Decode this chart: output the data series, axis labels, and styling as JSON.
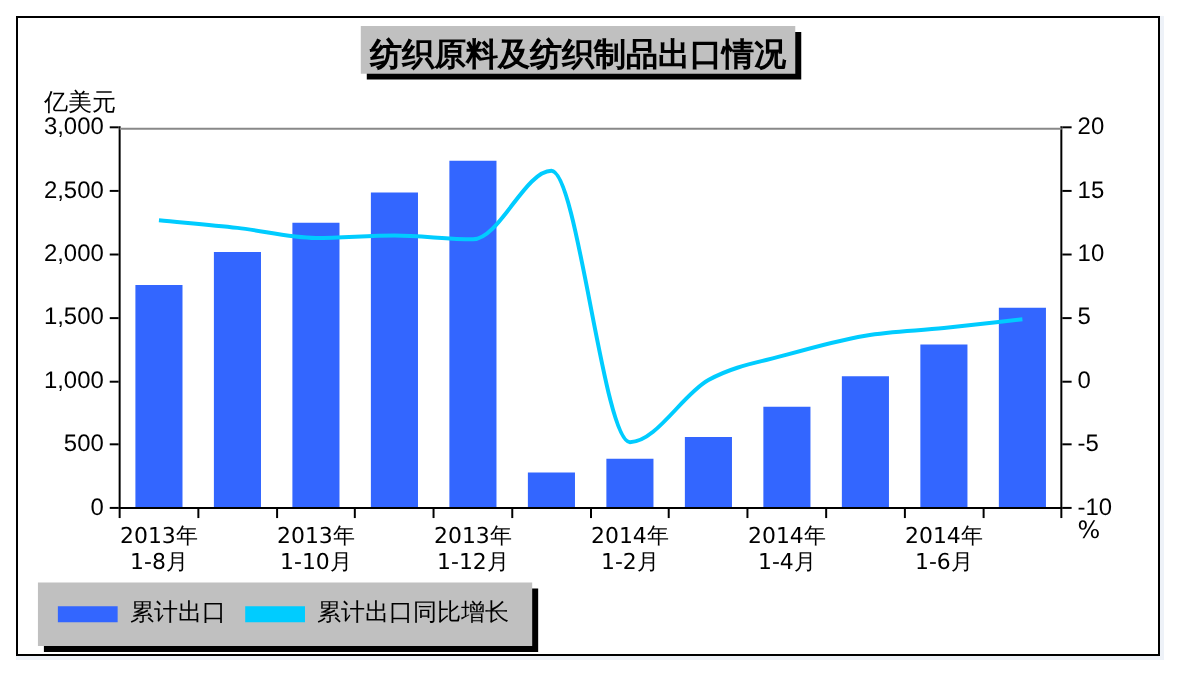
{
  "chart_data": {
    "type": "bar",
    "title": "纺织原料及纺织制品出口情况",
    "ylabel": "亿美元",
    "y2label": "%",
    "categories": [
      "2013年 1-8月",
      null,
      "2013年 1-10月",
      null,
      "2013年 1-12月",
      null,
      "2014年 1-2月",
      null,
      "2014年 1-4月",
      null,
      "2014年 1-6月",
      null
    ],
    "series": [
      {
        "name": "累计出口",
        "color": "#3366ff",
        "values": [
          1760,
          2020,
          2250,
          2490,
          2740,
          280,
          390,
          560,
          800,
          1040,
          1290,
          1580
        ]
      },
      {
        "name": "累计出口同比增长",
        "type": "line",
        "axis": "y2",
        "color": "#00ccff",
        "values": [
          12.7,
          12.1,
          11.3,
          11.5,
          11.2,
          16.6,
          -4.8,
          0.1,
          2.1,
          3.6,
          4.2,
          4.9
        ]
      }
    ],
    "ylim": [
      0,
      3000
    ],
    "yticks": [
      {
        "value": 0,
        "label": "0"
      },
      {
        "value": 500,
        "label": "500"
      },
      {
        "value": 1000,
        "label": "1,000"
      },
      {
        "value": 1500,
        "label": "1,500"
      },
      {
        "value": 2000,
        "label": "2,000"
      },
      {
        "value": 2500,
        "label": "2,500"
      },
      {
        "value": 3000,
        "label": "3,000"
      }
    ],
    "y2lim": [
      -10,
      20
    ],
    "y2ticks": [
      -10,
      -5,
      0,
      5,
      10,
      15,
      20
    ],
    "grid": false,
    "legend": "bottom left",
    "marker": "none",
    "line_style": "solid"
  }
}
